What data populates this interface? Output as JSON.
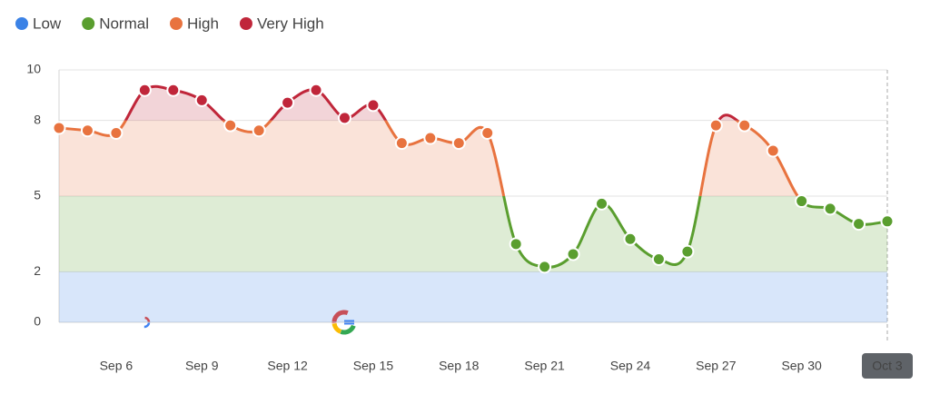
{
  "chart_data": {
    "type": "line",
    "levels": [
      {
        "name": "Low",
        "color": "#3b82e6",
        "range": [
          0,
          2
        ]
      },
      {
        "name": "Normal",
        "color": "#5a9e2f",
        "range": [
          2,
          5
        ]
      },
      {
        "name": "High",
        "color": "#e8733f",
        "range": [
          5,
          8
        ]
      },
      {
        "name": "Very High",
        "color": "#c0263a",
        "range": [
          8,
          10
        ]
      }
    ],
    "categories": [
      null,
      null,
      "Sep 6",
      null,
      null,
      "Sep 9",
      null,
      null,
      "Sep 12",
      null,
      null,
      "Sep 15",
      null,
      null,
      "Sep 18",
      null,
      null,
      "Sep 21",
      null,
      null,
      "Sep 24",
      null,
      null,
      "Sep 27",
      null,
      null,
      "Sep 30",
      null,
      null,
      "Oct 3"
    ],
    "values": [
      7.7,
      7.6,
      7.5,
      9.2,
      9.2,
      8.8,
      7.8,
      7.6,
      8.7,
      9.2,
      8.1,
      8.6,
      7.1,
      7.3,
      7.1,
      7.5,
      3.1,
      2.2,
      2.7,
      4.7,
      3.3,
      2.5,
      2.8,
      7.8,
      7.8,
      6.8,
      4.8,
      4.5,
      3.9,
      4.0
    ],
    "ylim": [
      0,
      10
    ],
    "yticks": [
      0,
      2,
      5,
      8,
      10
    ],
    "grid": true
  }
}
